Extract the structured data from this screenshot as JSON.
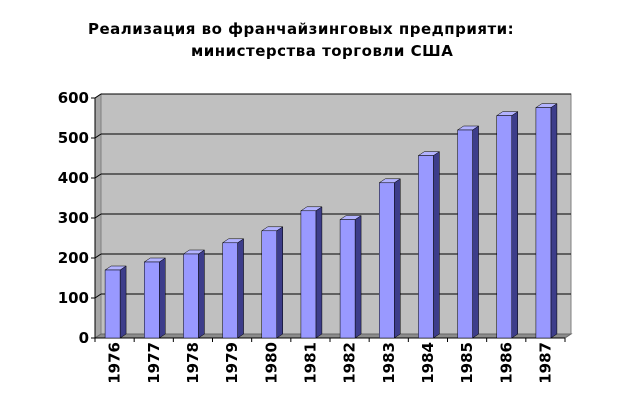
{
  "chart_data": {
    "type": "bar",
    "title": [
      "Реализация во франчайзинговых предприяти:",
      "министерства торговли США"
    ],
    "xlabel": "",
    "ylabel": "",
    "categories": [
      "1976",
      "1977",
      "1978",
      "1979",
      "1980",
      "1981",
      "1982",
      "1983",
      "1984",
      "1985",
      "1986",
      "1987"
    ],
    "values": [
      170,
      190,
      210,
      238,
      268,
      318,
      296,
      388,
      456,
      520,
      556,
      576
    ],
    "ylim": [
      0,
      600
    ],
    "yticks": [
      "0",
      "100",
      "200",
      "300",
      "400",
      "500",
      "600"
    ],
    "grid": true,
    "legend": "none",
    "colors": {
      "bar_front": "#9999ff",
      "bar_top": "#b3b3ff",
      "bar_side": "#3d3d8a",
      "plot_back": "#c0c0c0",
      "plot_floor": "#8c8c8c",
      "grid": "#000000"
    }
  }
}
